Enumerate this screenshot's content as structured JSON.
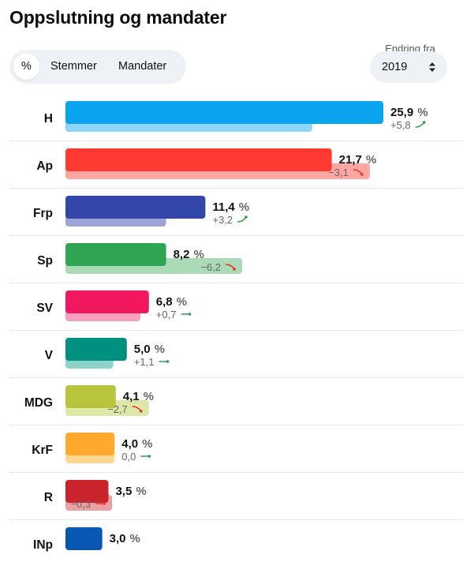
{
  "title": "Oppslutning og mandater",
  "toggle": {
    "options": [
      "%",
      "Stemmer",
      "Mandater"
    ],
    "selected": "%"
  },
  "change_from": {
    "label": "Endring fra",
    "year": "2019",
    "icon": "sort-updown-icon"
  },
  "colors": {
    "positive_arrow": "#2e9d4f",
    "negative_arrow": "#e0362c",
    "divider": "#e3e6ea",
    "change_text": "#666666"
  },
  "chart_data": {
    "type": "bar",
    "orientation": "horizontal",
    "title": "Oppslutning og mandater",
    "xlabel": "",
    "ylabel": "",
    "unit": "%",
    "grid": false,
    "legend": "none",
    "categories": [
      "H",
      "Ap",
      "Frp",
      "Sp",
      "SV",
      "V",
      "MDG",
      "KrF",
      "R",
      "INp"
    ],
    "series": [
      {
        "values": [
          25.9,
          21.7,
          11.4,
          8.2,
          6.8,
          5.0,
          4.1,
          4.0,
          3.5,
          3.0
        ],
        "labels": [
          "25,9",
          "21,7",
          "11,4",
          "8,2",
          "6,8",
          "5,0",
          "4,1",
          "4,0",
          "3,5",
          "3,0"
        ]
      },
      {
        "values": [
          20.1,
          24.8,
          8.2,
          14.4,
          6.1,
          3.9,
          6.8,
          4.0,
          3.8,
          null
        ]
      }
    ],
    "change": {
      "values": [
        5.8,
        -3.1,
        3.2,
        -6.2,
        0.7,
        1.1,
        -2.7,
        0.0,
        -0.3,
        null
      ],
      "labels": [
        "+5,8",
        "−3,1",
        "+3,2",
        "−6,2",
        "+0,7",
        "+1,1",
        "−2,7",
        "0,0",
        "−0,3",
        ""
      ]
    },
    "colors": {
      "current": [
        "#0aa3ee",
        "#ff3a30",
        "#3347ab",
        "#2fa552",
        "#f0175e",
        "#009080",
        "#b8c43c",
        "#ffa92e",
        "#c9232c",
        "#0858b3"
      ],
      "previous": [
        "#8fd5f8",
        "#ffa6a2",
        "#9ba5d8",
        "#aadbb6",
        "#f99cbd",
        "#8ed3c9",
        "#dde7a6",
        "#ffd791",
        "#eba0a4",
        "#8fb4e4"
      ]
    },
    "xlim": [
      0,
      25.9
    ]
  }
}
